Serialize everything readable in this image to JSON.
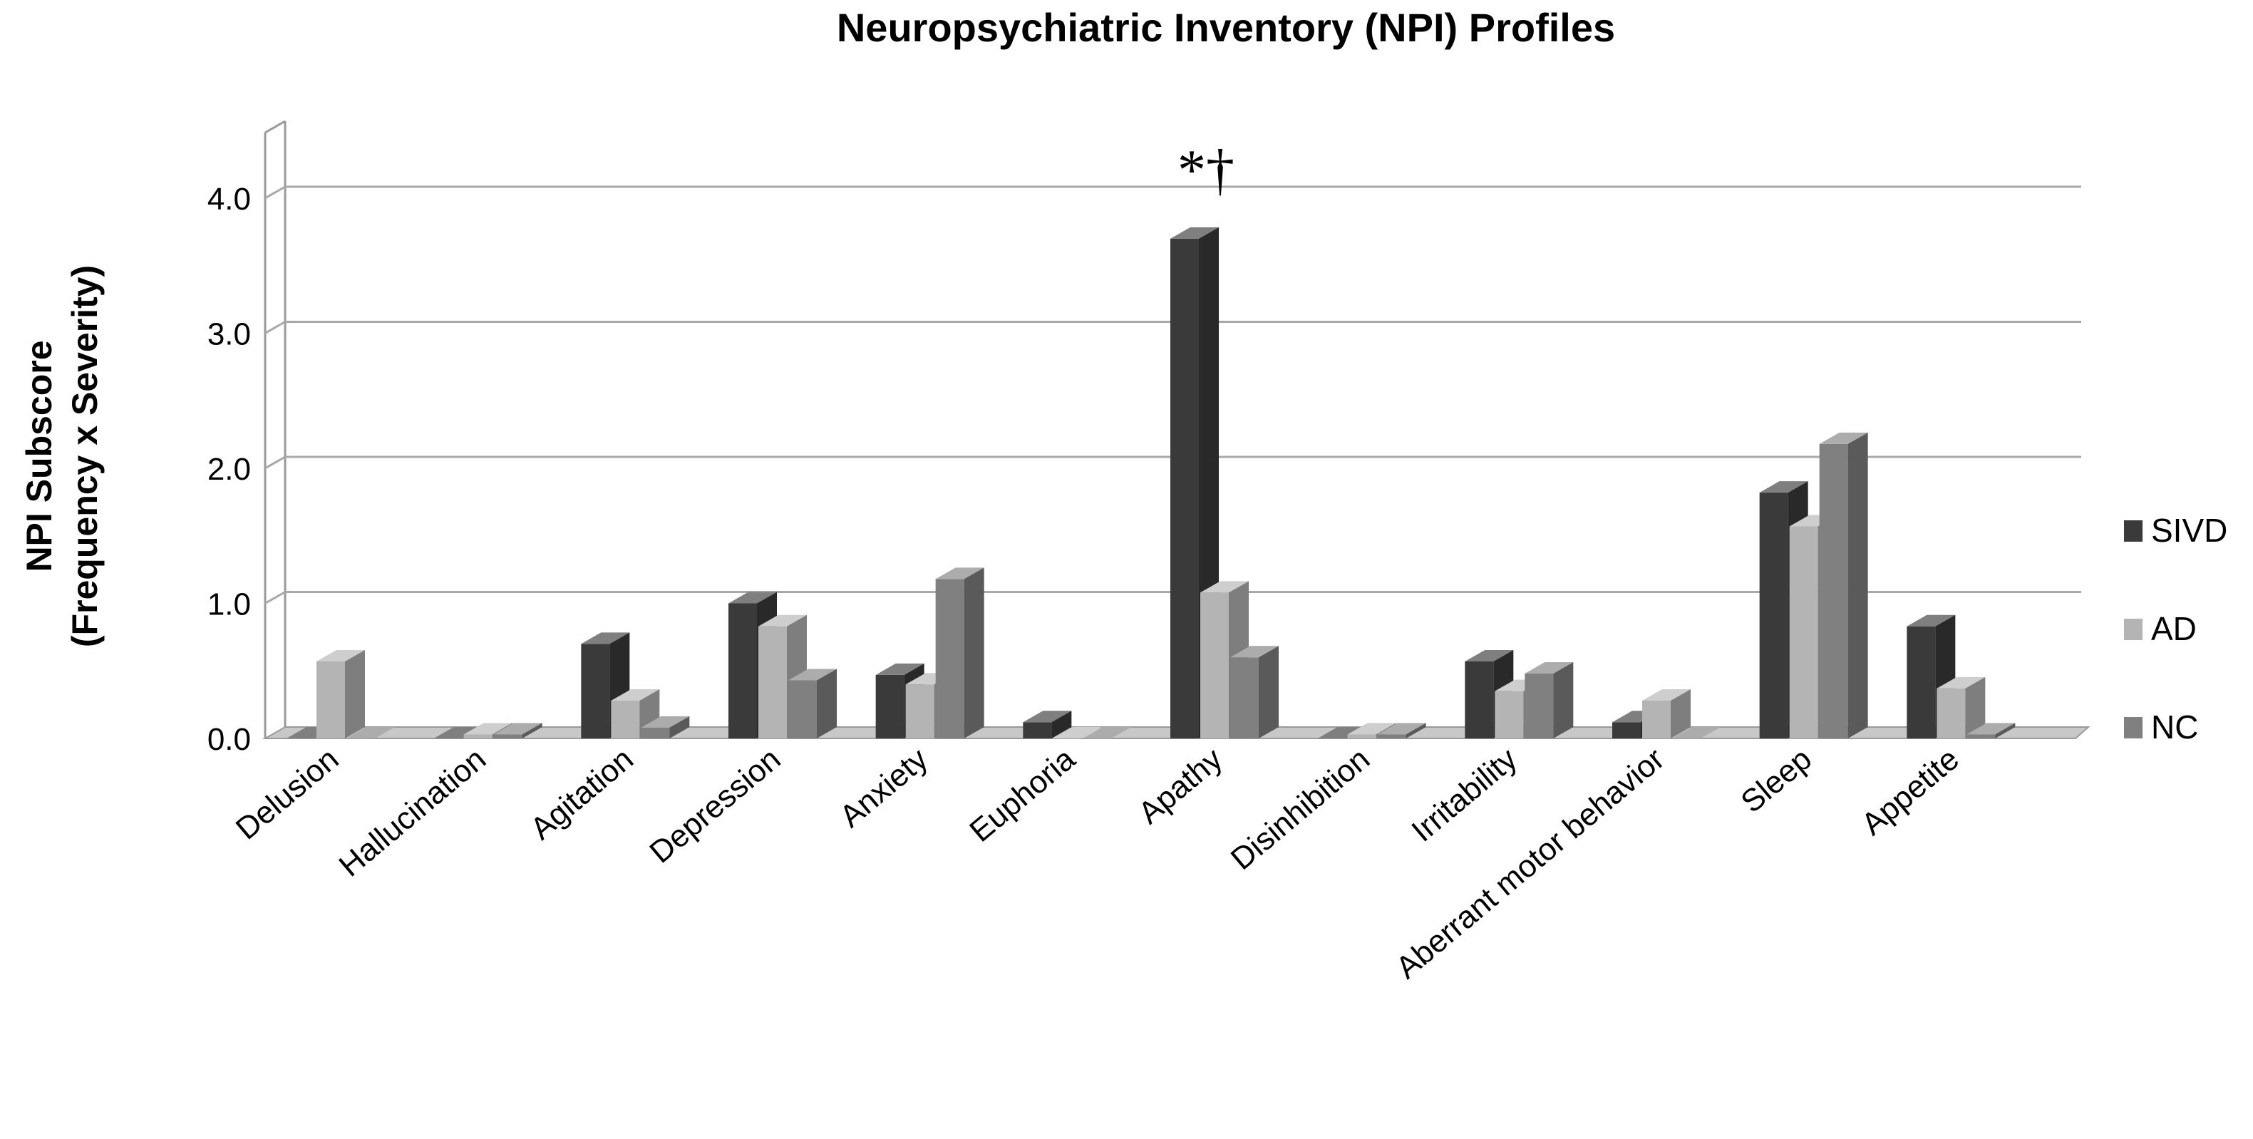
{
  "chart_data": {
    "type": "bar",
    "title": "Neuropsychiatric Inventory (NPI) Profiles",
    "ylabel_lines": [
      "NPI Subscore",
      "(Frequency x Severity)"
    ],
    "xlabel": "",
    "ylim": [
      0,
      4.0
    ],
    "y_ticks": [
      "0.0",
      "1.0",
      "2.0",
      "3.0",
      "4.0"
    ],
    "grid": true,
    "legend_position": "right",
    "categories": [
      "Delusion",
      "Hallucination",
      "Agitation",
      "Depression",
      "Anxiety",
      "Euphoria",
      "Apathy",
      "Disinhibition",
      "Irritability",
      "Aberrant motor behavior",
      "Sleep",
      "Appetite"
    ],
    "series": [
      {
        "name": "SIVD",
        "color": "#3a3a3a",
        "values": [
          0.0,
          0.0,
          0.7,
          1.0,
          0.47,
          0.12,
          3.7,
          0.0,
          0.57,
          0.12,
          1.82,
          0.83
        ]
      },
      {
        "name": "AD",
        "color": "#b4b4b4",
        "values": [
          0.57,
          0.03,
          0.28,
          0.83,
          0.4,
          0.0,
          1.08,
          0.03,
          0.35,
          0.28,
          1.57,
          0.37
        ]
      },
      {
        "name": "NC",
        "color": "#808080",
        "values": [
          0.0,
          0.03,
          0.08,
          0.43,
          1.18,
          0.0,
          0.6,
          0.03,
          0.48,
          0.0,
          2.18,
          0.03
        ]
      }
    ],
    "annotations": [
      {
        "category": "Apathy",
        "text": "*†"
      }
    ]
  }
}
